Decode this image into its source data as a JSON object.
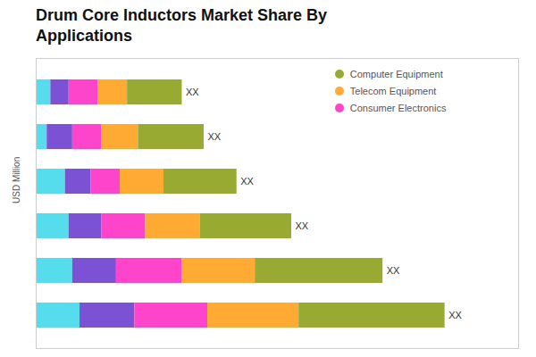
{
  "chart_data": {
    "type": "bar",
    "orientation": "horizontal",
    "stacked": true,
    "title": "Drum Core Inductors Market Share By\nApplications",
    "ylabel": "USD Million",
    "categories": [
      "XX",
      "XX",
      "XX",
      "XX",
      "XX",
      "XX"
    ],
    "series": [
      {
        "color": "#55DDEE",
        "values": [
          1.2,
          1.0,
          0.9,
          0.8,
          0.3,
          0.4
        ]
      },
      {
        "color": "#7B52D3",
        "values": [
          1.5,
          1.2,
          0.9,
          0.7,
          0.7,
          0.5
        ]
      },
      {
        "name": "Consumer Electronics",
        "color": "#FF44CC",
        "values": [
          2.0,
          1.8,
          1.2,
          0.8,
          0.8,
          0.8
        ]
      },
      {
        "name": "Telecom Equipment",
        "color": "#FFAA33",
        "values": [
          2.5,
          2.0,
          1.5,
          1.2,
          1.0,
          0.8
        ]
      },
      {
        "name": "Computer Equipment",
        "color": "#99AA33",
        "values": [
          4.0,
          3.5,
          2.5,
          2.0,
          1.8,
          1.5
        ]
      }
    ],
    "xlim": [
      0,
      13.216
    ],
    "tick_labels": false,
    "grid": false,
    "legend": "upper right"
  }
}
